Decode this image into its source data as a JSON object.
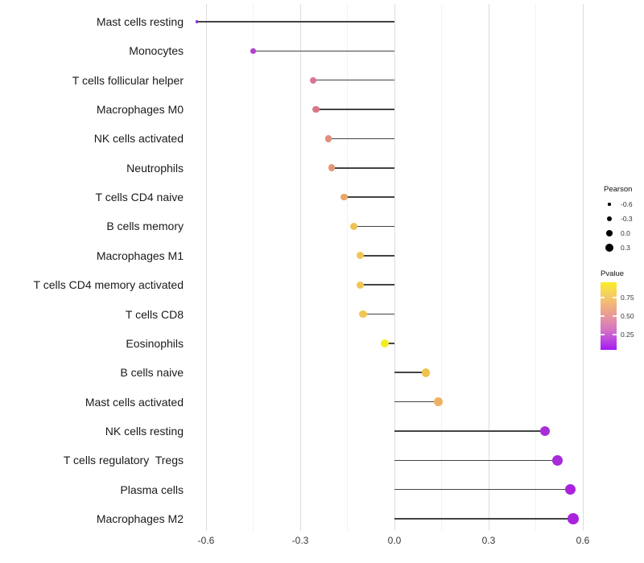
{
  "chart_data": {
    "type": "lollipop",
    "title": "",
    "xlabel": "",
    "ylabel": "",
    "orientation": "horizontal",
    "xlim": [
      -0.66,
      0.64
    ],
    "grid": "vertical major and minor gridlines only",
    "x_ticks": [
      "-0.6",
      "-0.3",
      "0.0",
      "0.3",
      "0.6"
    ],
    "x_tick_values": [
      -0.6,
      -0.3,
      0.0,
      0.3,
      0.6
    ],
    "x_minor_values": [
      -0.45,
      -0.15,
      0.15,
      0.45
    ],
    "categories": [
      "Mast cells resting",
      "Monocytes",
      "T cells follicular helper",
      "Macrophages M0",
      "NK cells activated",
      "Neutrophils",
      "T cells CD4 naive",
      "B cells memory",
      "Macrophages M1",
      "T cells CD4 memory activated",
      "T cells CD8",
      "Eosinophils",
      "B cells naive",
      "Mast cells activated",
      "NK cells resting",
      "T cells regulatory  Tregs",
      "Plasma cells",
      "Macrophages M2"
    ],
    "series": [
      {
        "name": "Pearson",
        "values": [
          -0.63,
          -0.45,
          -0.26,
          -0.25,
          -0.21,
          -0.2,
          -0.16,
          -0.13,
          -0.11,
          -0.11,
          -0.1,
          -0.03,
          0.1,
          0.14,
          0.48,
          0.52,
          0.56,
          0.57
        ]
      }
    ],
    "points": [
      {
        "label": "Mast cells resting",
        "pearson": -0.63,
        "pvalue_approx": 0.02,
        "color": "#8E26DF",
        "radius": 1.6
      },
      {
        "label": "Monocytes",
        "pearson": -0.45,
        "pvalue_approx": 0.15,
        "color": "#B242D0",
        "radius": 3.3
      },
      {
        "label": "T cells follicular helper",
        "pearson": -0.26,
        "pvalue_approx": 0.42,
        "color": "#D77790",
        "radius": 4.1
      },
      {
        "label": "Macrophages M0",
        "pearson": -0.25,
        "pvalue_approx": 0.42,
        "color": "#D67788",
        "radius": 4.2
      },
      {
        "label": "NK cells activated",
        "pearson": -0.21,
        "pvalue_approx": 0.52,
        "color": "#E08F7C",
        "radius": 4.2
      },
      {
        "label": "Neutrophils",
        "pearson": -0.2,
        "pvalue_approx": 0.55,
        "color": "#E2967A",
        "radius": 4.3
      },
      {
        "label": "T cells CD4 naive",
        "pearson": -0.16,
        "pvalue_approx": 0.63,
        "color": "#E9A762",
        "radius": 4.4
      },
      {
        "label": "B cells memory",
        "pearson": -0.13,
        "pvalue_approx": 0.74,
        "color": "#F0C255",
        "radius": 4.5
      },
      {
        "label": "Macrophages M1",
        "pearson": -0.11,
        "pvalue_approx": 0.76,
        "color": "#F1C553",
        "radius": 4.6
      },
      {
        "label": "T cells CD4 memory activated",
        "pearson": -0.11,
        "pvalue_approx": 0.76,
        "color": "#F1C553",
        "radius": 4.6
      },
      {
        "label": "T cells CD8",
        "pearson": -0.1,
        "pvalue_approx": 0.77,
        "color": "#F1C751",
        "radius": 4.6
      },
      {
        "label": "Eosinophils",
        "pearson": -0.03,
        "pvalue_approx": 0.93,
        "color": "#F2EC1E",
        "radius": 5.0
      },
      {
        "label": "B cells naive",
        "pearson": 0.1,
        "pvalue_approx": 0.78,
        "color": "#EFC24E",
        "radius": 5.4
      },
      {
        "label": "Mast cells activated",
        "pearson": 0.14,
        "pvalue_approx": 0.7,
        "color": "#ECB163",
        "radius": 5.7
      },
      {
        "label": "NK cells resting",
        "pearson": 0.48,
        "pvalue_approx": 0.07,
        "color": "#A82ED6",
        "radius": 6.2
      },
      {
        "label": "T cells regulatory  Tregs",
        "pearson": 0.52,
        "pvalue_approx": 0.06,
        "color": "#A72BD8",
        "radius": 6.4
      },
      {
        "label": "Plasma cells",
        "pearson": 0.56,
        "pvalue_approx": 0.05,
        "color": "#A922DE",
        "radius": 6.7
      },
      {
        "label": "Macrophages M2",
        "pearson": 0.57,
        "pvalue_approx": 0.05,
        "color": "#A922DE",
        "radius": 6.9
      }
    ],
    "legend_size": {
      "title": "Pearson",
      "entries": [
        {
          "label": "-0.6",
          "radius": 1.6
        },
        {
          "label": "-0.3",
          "radius": 3.4
        },
        {
          "label": "0.0",
          "radius": 4.4
        },
        {
          "label": "0.3",
          "radius": 5.2
        }
      ]
    },
    "legend_color": {
      "title": "Pvalue",
      "labels": [
        "0.75",
        "0.50",
        "0.25"
      ],
      "range": [
        0.043,
        0.956
      ],
      "gradient_stops": [
        {
          "pos": 0,
          "color": "#F9EE21"
        },
        {
          "pos": 14,
          "color": "#F6D557"
        },
        {
          "pos": 30,
          "color": "#F2BA78"
        },
        {
          "pos": 45,
          "color": "#EBA090"
        },
        {
          "pos": 58,
          "color": "#E18BAB"
        },
        {
          "pos": 72,
          "color": "#D26FC6"
        },
        {
          "pos": 86,
          "color": "#BC46DF"
        },
        {
          "pos": 100,
          "color": "#A618F3"
        }
      ]
    },
    "style": {
      "segment_color": "#434343",
      "grid_major_color": "#dcdcdc",
      "grid_minor_color": "#f2f2f2",
      "legend_dot_color": "#000000",
      "background": "#ffffff"
    }
  }
}
